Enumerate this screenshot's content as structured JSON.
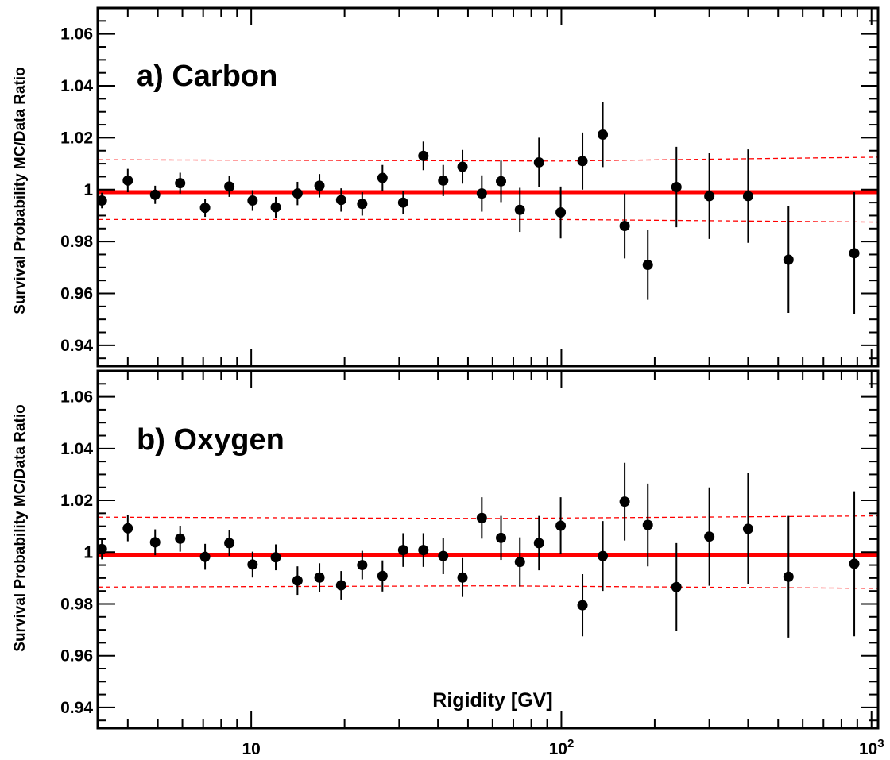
{
  "chart_data": [
    {
      "type": "scatter",
      "panel_label": "a) Carbon",
      "ylabel": "Survival Probability MC/Data Ratio",
      "xlabel": "",
      "xscale": "log",
      "xlim": [
        3.2,
        1050
      ],
      "ylim": [
        0.932,
        1.07
      ],
      "yticks": [
        0.94,
        0.96,
        0.98,
        1.0,
        1.02,
        1.04,
        1.06
      ],
      "ytick_labels": [
        "0.94",
        "0.96",
        "0.98",
        "1",
        "1.02",
        "1.04",
        "1.06"
      ],
      "fit_line": {
        "y": 0.999,
        "color": "#ff0000"
      },
      "band_upper": [
        [
          3.2,
          1.0115
        ],
        [
          100,
          1.011
        ],
        [
          1050,
          1.0125
        ]
      ],
      "band_lower": [
        [
          3.2,
          0.9885
        ],
        [
          100,
          0.9885
        ],
        [
          1050,
          0.9875
        ]
      ],
      "points": [
        {
          "x": 3.3,
          "y": 0.9958,
          "err": 0.003
        },
        {
          "x": 4.0,
          "y": 1.0035,
          "err": 0.0045
        },
        {
          "x": 4.9,
          "y": 0.998,
          "err": 0.0035
        },
        {
          "x": 5.9,
          "y": 1.0025,
          "err": 0.004
        },
        {
          "x": 7.1,
          "y": 0.993,
          "err": 0.0035
        },
        {
          "x": 8.5,
          "y": 1.0012,
          "err": 0.004
        },
        {
          "x": 10.1,
          "y": 0.9958,
          "err": 0.004
        },
        {
          "x": 12.0,
          "y": 0.9932,
          "err": 0.004
        },
        {
          "x": 14.1,
          "y": 0.9985,
          "err": 0.0045
        },
        {
          "x": 16.6,
          "y": 1.0015,
          "err": 0.0045
        },
        {
          "x": 19.5,
          "y": 0.996,
          "err": 0.0045
        },
        {
          "x": 22.8,
          "y": 0.9945,
          "err": 0.0045
        },
        {
          "x": 26.5,
          "y": 1.0045,
          "err": 0.005
        },
        {
          "x": 30.9,
          "y": 0.995,
          "err": 0.0045
        },
        {
          "x": 35.9,
          "y": 1.013,
          "err": 0.0055
        },
        {
          "x": 41.6,
          "y": 1.0035,
          "err": 0.006
        },
        {
          "x": 48.0,
          "y": 1.0088,
          "err": 0.0065
        },
        {
          "x": 55.4,
          "y": 0.9985,
          "err": 0.007
        },
        {
          "x": 63.9,
          "y": 1.0032,
          "err": 0.008
        },
        {
          "x": 73.5,
          "y": 0.9922,
          "err": 0.0085
        },
        {
          "x": 84.7,
          "y": 1.0105,
          "err": 0.0095
        },
        {
          "x": 99.5,
          "y": 0.9912,
          "err": 0.01
        },
        {
          "x": 117.0,
          "y": 1.011,
          "err": 0.011
        },
        {
          "x": 136.0,
          "y": 1.0212,
          "err": 0.0125
        },
        {
          "x": 160.0,
          "y": 0.986,
          "err": 0.0125
        },
        {
          "x": 190.0,
          "y": 0.971,
          "err": 0.0135
        },
        {
          "x": 235.0,
          "y": 1.001,
          "err": 0.0155
        },
        {
          "x": 300.0,
          "y": 0.9975,
          "err": 0.0165
        },
        {
          "x": 400.0,
          "y": 0.9975,
          "err": 0.018
        },
        {
          "x": 540.0,
          "y": 0.973,
          "err": 0.0205
        },
        {
          "x": 880.0,
          "y": 0.9755,
          "err": 0.0235
        }
      ]
    },
    {
      "type": "scatter",
      "panel_label": "b) Oxygen",
      "ylabel": "Survival Probability MC/Data Ratio",
      "xlabel": "Rigidity [GV]",
      "xscale": "log",
      "xlim": [
        3.2,
        1050
      ],
      "ylim": [
        0.932,
        1.07
      ],
      "yticks": [
        0.94,
        0.96,
        0.98,
        1.0,
        1.02,
        1.04,
        1.06
      ],
      "ytick_labels": [
        "0.94",
        "0.96",
        "0.98",
        "1",
        "1.02",
        "1.04",
        "1.06"
      ],
      "xticks": [
        10,
        100,
        1000
      ],
      "xtick_labels": [
        {
          "base": "10",
          "exp": ""
        },
        {
          "base": "10",
          "exp": "2"
        },
        {
          "base": "10",
          "exp": "3"
        }
      ],
      "fit_line": {
        "y": 0.999,
        "color": "#ff0000"
      },
      "band_upper": [
        [
          3.2,
          1.0135
        ],
        [
          60,
          1.013
        ],
        [
          1050,
          1.014
        ]
      ],
      "band_lower": [
        [
          3.2,
          0.9865
        ],
        [
          60,
          0.987
        ],
        [
          1050,
          0.986
        ]
      ],
      "points": [
        {
          "x": 3.3,
          "y": 1.0012,
          "err": 0.004
        },
        {
          "x": 4.0,
          "y": 1.0092,
          "err": 0.005
        },
        {
          "x": 4.9,
          "y": 1.0038,
          "err": 0.005
        },
        {
          "x": 5.9,
          "y": 1.0052,
          "err": 0.005
        },
        {
          "x": 7.1,
          "y": 0.9982,
          "err": 0.005
        },
        {
          "x": 8.5,
          "y": 1.0035,
          "err": 0.005
        },
        {
          "x": 10.1,
          "y": 0.9952,
          "err": 0.005
        },
        {
          "x": 12.0,
          "y": 0.998,
          "err": 0.005
        },
        {
          "x": 14.1,
          "y": 0.989,
          "err": 0.0055
        },
        {
          "x": 16.6,
          "y": 0.9902,
          "err": 0.0055
        },
        {
          "x": 19.5,
          "y": 0.9872,
          "err": 0.0055
        },
        {
          "x": 22.8,
          "y": 0.995,
          "err": 0.0055
        },
        {
          "x": 26.5,
          "y": 0.9908,
          "err": 0.006
        },
        {
          "x": 30.9,
          "y": 1.0008,
          "err": 0.0065
        },
        {
          "x": 35.9,
          "y": 1.0008,
          "err": 0.0065
        },
        {
          "x": 41.6,
          "y": 0.9985,
          "err": 0.007
        },
        {
          "x": 48.0,
          "y": 0.9902,
          "err": 0.0075
        },
        {
          "x": 55.4,
          "y": 1.0132,
          "err": 0.008
        },
        {
          "x": 63.9,
          "y": 1.0055,
          "err": 0.0085
        },
        {
          "x": 73.5,
          "y": 0.9962,
          "err": 0.0095
        },
        {
          "x": 84.7,
          "y": 1.0035,
          "err": 0.0105
        },
        {
          "x": 99.5,
          "y": 1.0102,
          "err": 0.011
        },
        {
          "x": 117.0,
          "y": 0.9795,
          "err": 0.012
        },
        {
          "x": 136.0,
          "y": 0.9985,
          "err": 0.0135
        },
        {
          "x": 160.0,
          "y": 1.0195,
          "err": 0.015
        },
        {
          "x": 190.0,
          "y": 1.0105,
          "err": 0.016
        },
        {
          "x": 235.0,
          "y": 0.9865,
          "err": 0.017
        },
        {
          "x": 300.0,
          "y": 1.006,
          "err": 0.019
        },
        {
          "x": 400.0,
          "y": 1.009,
          "err": 0.0215
        },
        {
          "x": 540.0,
          "y": 0.9905,
          "err": 0.0235
        },
        {
          "x": 880.0,
          "y": 0.9955,
          "err": 0.028
        }
      ]
    }
  ]
}
